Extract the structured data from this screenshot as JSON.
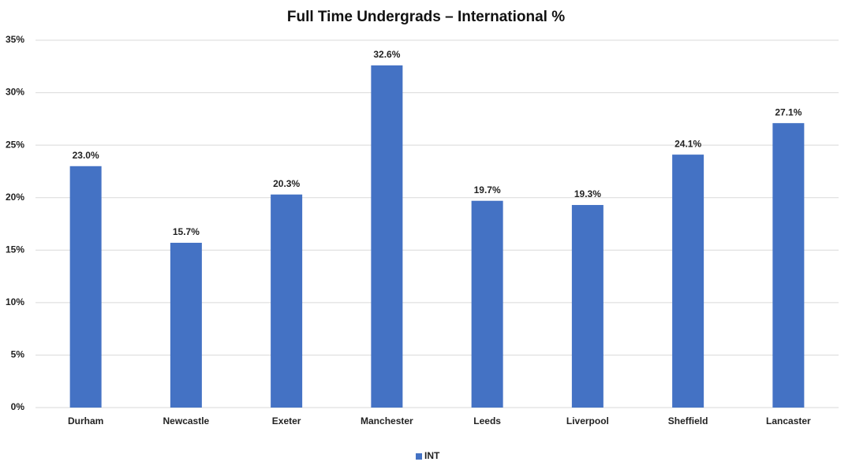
{
  "chart_data": {
    "type": "bar",
    "title": "Full Time Undergrads – International %",
    "categories": [
      "Durham",
      "Newcastle",
      "Exeter",
      "Manchester",
      "Leeds",
      "Liverpool",
      "Sheffield",
      "Lancaster"
    ],
    "series": [
      {
        "name": "INT",
        "color": "#4472c4",
        "values": [
          23.0,
          15.7,
          20.3,
          32.6,
          19.7,
          19.3,
          24.1,
          27.1
        ],
        "value_labels": [
          "23.0%",
          "15.7%",
          "20.3%",
          "32.6%",
          "19.7%",
          "19.3%",
          "24.1%",
          "27.1%"
        ]
      }
    ],
    "ylim": [
      0,
      35
    ],
    "yticks": [
      {
        "value": 0,
        "label": "0%"
      },
      {
        "value": 5,
        "label": "5%"
      },
      {
        "value": 10,
        "label": "10%"
      },
      {
        "value": 15,
        "label": "15%"
      },
      {
        "value": 20,
        "label": "20%"
      },
      {
        "value": 25,
        "label": "25%"
      },
      {
        "value": 30,
        "label": "30%"
      },
      {
        "value": 35,
        "label": "35%"
      }
    ],
    "grid": true,
    "legend": "bottom"
  }
}
